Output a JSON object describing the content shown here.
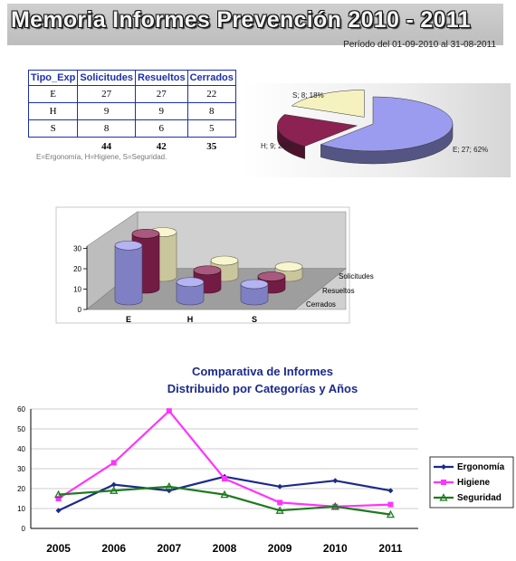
{
  "header": {
    "title": "Memoria Informes Prevención 2010 - 2011",
    "period": "Período del 01-09-2010 al 31-08-2011"
  },
  "colors": {
    "solicitudes": "#9b9bef",
    "resueltos": "#8b2252",
    "cerrados": "#f5f2bf",
    "ergonomia": "#1c2a8c",
    "higiene": "#ff33ff",
    "seguridad": "#1f7a1f",
    "table_border": "#1c2fb0",
    "line_title": "#1c2a8c"
  },
  "table": {
    "headers": [
      "Tipo_Exp",
      "Solicitudes",
      "Resueltos",
      "Cerrados"
    ],
    "rows": [
      [
        "E",
        "27",
        "27",
        "22"
      ],
      [
        "H",
        "9",
        "9",
        "8"
      ],
      [
        "S",
        "8",
        "6",
        "5"
      ]
    ],
    "totals": [
      "",
      "44",
      "42",
      "35"
    ],
    "note": "E=Ergonomía, H=Higiene, S=Seguridad."
  },
  "chart_data": [
    {
      "type": "pie",
      "labels": [
        "E",
        "H",
        "S"
      ],
      "values": [
        27,
        9,
        8
      ],
      "slice_labels": [
        "E; 27; 62%",
        "H; 9; 20%",
        "S; 8; 18%"
      ],
      "colors": [
        "#9b9bef",
        "#8b2252",
        "#f5f2bf"
      ],
      "exploded": [
        "H",
        "S"
      ]
    },
    {
      "type": "bar",
      "categories": [
        "E",
        "H",
        "S"
      ],
      "series": [
        {
          "name": "Solicitudes",
          "values": [
            27,
            9,
            8
          ]
        },
        {
          "name": "Resueltos",
          "values": [
            27,
            9,
            6
          ]
        },
        {
          "name": "Cerrados",
          "values": [
            22,
            8,
            5
          ]
        }
      ],
      "ylim": [
        0,
        30
      ],
      "yticks": [
        "0",
        "10",
        "20",
        "30"
      ],
      "style": "3d-cylinder"
    },
    {
      "type": "line",
      "title_lines": [
        "Comparativa de Informes",
        "Distribuido por Categorías y Años"
      ],
      "x": [
        "2005",
        "2006",
        "2007",
        "2008",
        "2009",
        "2010",
        "2011"
      ],
      "series": [
        {
          "name": "Ergonomía",
          "values": [
            9,
            22,
            19,
            26,
            21,
            24,
            19
          ]
        },
        {
          "name": "Higiene",
          "values": [
            15,
            33,
            59,
            25,
            13,
            11,
            12
          ]
        },
        {
          "name": "Seguridad",
          "values": [
            17,
            19,
            21,
            17,
            9,
            11,
            7
          ]
        }
      ],
      "ylim": [
        0,
        60
      ],
      "yticks": [
        "0",
        "10",
        "20",
        "30",
        "40",
        "50",
        "60"
      ],
      "grid": true,
      "legend": "right"
    }
  ]
}
